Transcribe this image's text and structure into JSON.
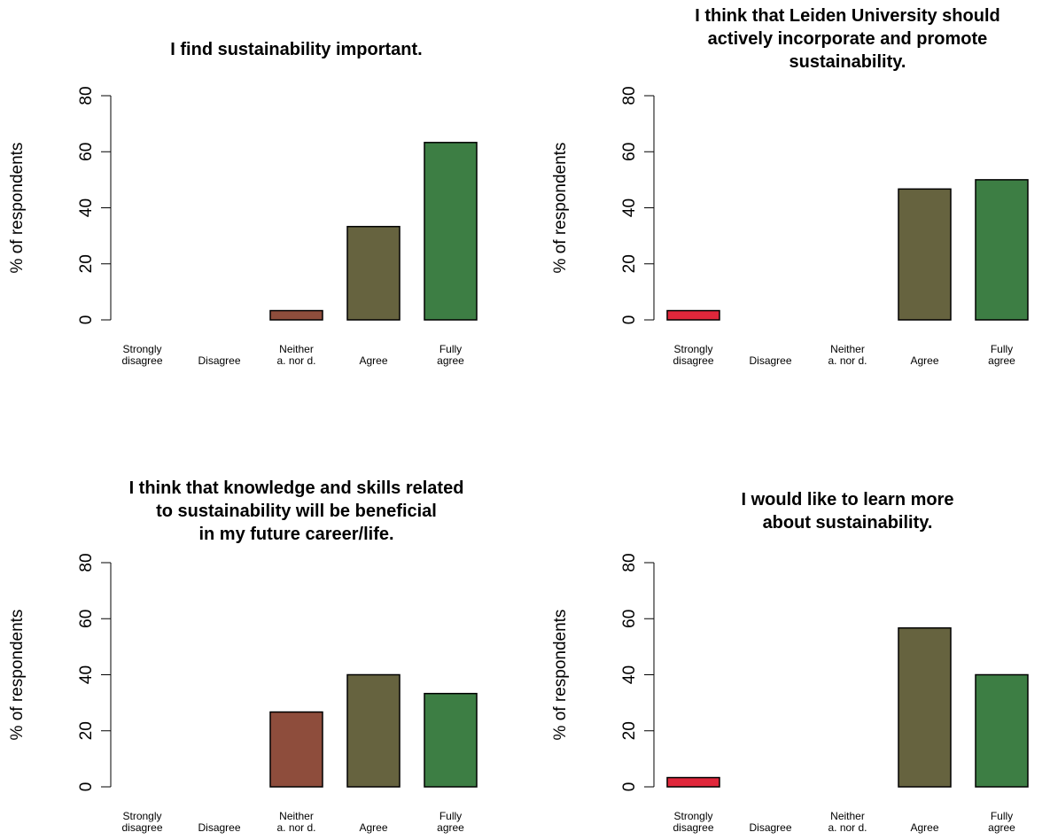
{
  "colors": {
    "strongly_disagree": "#e0273b",
    "disagree": "#b2655b",
    "neither": "#8e4d3c",
    "agree": "#66633f",
    "fully_agree": "#3d7e44"
  },
  "chart_data": [
    {
      "type": "bar",
      "title": "I find sustainability important.",
      "categories": [
        "Strongly\ndisagree",
        "Disagree",
        "Neither\na. nor d.",
        "Agree",
        "Fully\nagree"
      ],
      "values": [
        0,
        0,
        3.3,
        33.3,
        63.3
      ],
      "xlabel": "",
      "ylabel": "% of respondents",
      "ylim": [
        0,
        80
      ],
      "yticks": [
        "0",
        "20",
        "40",
        "60",
        "80"
      ],
      "grid": false
    },
    {
      "type": "bar",
      "title": "I think that Leiden University should\nactively incorporate and promote\nsustainability.",
      "categories": [
        "Strongly\ndisagree",
        "Disagree",
        "Neither\na. nor d.",
        "Agree",
        "Fully\nagree"
      ],
      "values": [
        3.3,
        0,
        0,
        46.7,
        50.0
      ],
      "xlabel": "",
      "ylabel": "% of respondents",
      "ylim": [
        0,
        80
      ],
      "yticks": [
        "0",
        "20",
        "40",
        "60",
        "80"
      ],
      "grid": false
    },
    {
      "type": "bar",
      "title": "I think that knowledge and skills related\nto sustainability will be beneficial\nin my future career/life.",
      "categories": [
        "Strongly\ndisagree",
        "Disagree",
        "Neither\na. nor d.",
        "Agree",
        "Fully\nagree"
      ],
      "values": [
        0,
        0,
        26.7,
        40.0,
        33.3
      ],
      "xlabel": "",
      "ylabel": "% of respondents",
      "ylim": [
        0,
        80
      ],
      "yticks": [
        "0",
        "20",
        "40",
        "60",
        "80"
      ],
      "grid": false
    },
    {
      "type": "bar",
      "title": "I would like to learn more\nabout sustainability.",
      "categories": [
        "Strongly\ndisagree",
        "Disagree",
        "Neither\na. nor d.",
        "Agree",
        "Fully\nagree"
      ],
      "values": [
        3.3,
        0,
        0,
        56.7,
        40.0
      ],
      "xlabel": "",
      "ylabel": "% of respondents",
      "ylim": [
        0,
        80
      ],
      "yticks": [
        "0",
        "20",
        "40",
        "60",
        "80"
      ],
      "grid": false
    }
  ]
}
